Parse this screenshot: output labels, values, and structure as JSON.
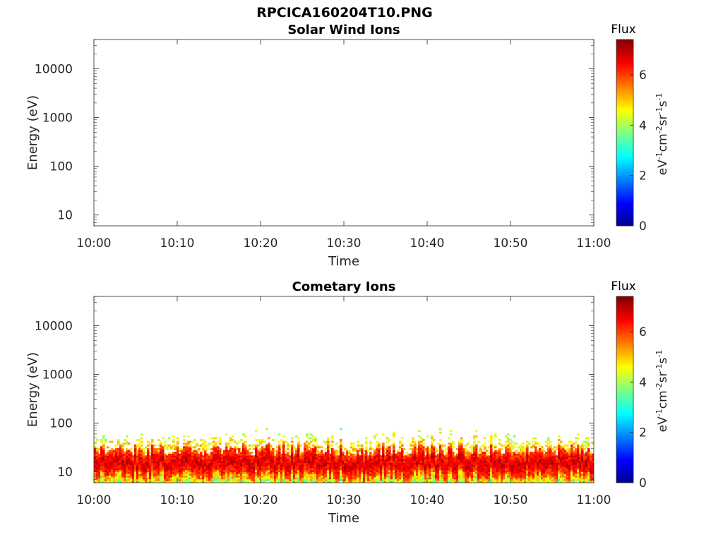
{
  "figure": {
    "title": "RPCICA160204T10.PNG"
  },
  "chart_data": [
    {
      "type": "heatmap",
      "title": "Solar Wind Ions",
      "xlabel": "Time",
      "ylabel": "Energy (eV)",
      "xticks": [
        "10:00",
        "10:10",
        "10:20",
        "10:30",
        "10:40",
        "10:50",
        "11:00"
      ],
      "yscale": "log",
      "yticks": [
        10,
        100,
        1000,
        10000
      ],
      "yticklabels": [
        "10",
        "100",
        "1000",
        "10000"
      ],
      "ylim": [
        6,
        40000
      ],
      "colorbar": {
        "label": "Flux",
        "units": "eV-1cm-2sr-1s-1",
        "ticks": [
          "0",
          "2",
          "4",
          "6"
        ],
        "range": [
          0,
          7.4
        ],
        "colormap": "jet"
      },
      "values": []
    },
    {
      "type": "heatmap",
      "title": "Cometary Ions",
      "xlabel": "Time",
      "ylabel": "Energy (eV)",
      "xticks": [
        "10:00",
        "10:10",
        "10:20",
        "10:30",
        "10:40",
        "10:50",
        "11:00"
      ],
      "yscale": "log",
      "yticks": [
        10,
        100,
        1000,
        10000
      ],
      "yticklabels": [
        "10",
        "100",
        "1000",
        "10000"
      ],
      "ylim": [
        6,
        40000
      ],
      "colorbar": {
        "label": "Flux",
        "units": "eV-1cm-2sr-1s-1",
        "ticks": [
          "0",
          "2",
          "4",
          "6"
        ],
        "range": [
          0,
          7.4
        ],
        "colormap": "jet"
      },
      "band": {
        "core_energy_range_eV": [
          10,
          25
        ],
        "peak_flux": 6.8,
        "sparse_extension_max_eV": 80,
        "low_energy_edge_eV": 6
      }
    }
  ]
}
